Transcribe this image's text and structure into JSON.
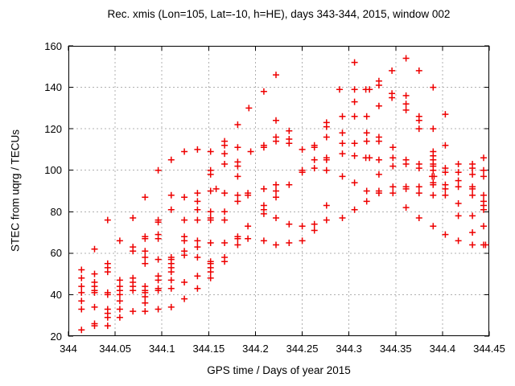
{
  "chart_data": {
    "type": "scatter",
    "title": "Rec. xmis (Lon=105, Lat=-10, h=HE), days 343-344, 2015, window 002",
    "xlabel": "GPS time / Days of year 2015",
    "ylabel": "STEC from uqrg / TECUs",
    "xlim": [
      344,
      344.45
    ],
    "ylim": [
      20,
      160
    ],
    "grid": true,
    "legend": "none",
    "marker": "plus",
    "marker_color": "#ee0000",
    "grid_color": "#b0b0b0",
    "axis_color": "#000000",
    "x_tick_labels": [
      "344",
      "344.05",
      "344.1",
      "344.15",
      "344.2",
      "344.25",
      "344.3",
      "344.35",
      "344.4",
      "344.45"
    ],
    "y_tick_labels": [
      "20",
      "40",
      "60",
      "80",
      "100",
      "120",
      "140",
      "160"
    ],
    "points": [
      [
        344.014,
        52
      ],
      [
        344.014,
        48
      ],
      [
        344.014,
        44
      ],
      [
        344.014,
        41
      ],
      [
        344.014,
        37
      ],
      [
        344.014,
        33
      ],
      [
        344.014,
        23
      ],
      [
        344.028,
        62
      ],
      [
        344.028,
        50
      ],
      [
        344.028,
        46
      ],
      [
        344.028,
        44
      ],
      [
        344.028,
        42
      ],
      [
        344.028,
        41
      ],
      [
        344.028,
        34
      ],
      [
        344.028,
        26
      ],
      [
        344.028,
        25
      ],
      [
        344.042,
        76
      ],
      [
        344.042,
        55
      ],
      [
        344.042,
        53
      ],
      [
        344.042,
        51
      ],
      [
        344.042,
        41
      ],
      [
        344.042,
        40
      ],
      [
        344.042,
        33
      ],
      [
        344.042,
        31
      ],
      [
        344.042,
        29
      ],
      [
        344.042,
        25
      ],
      [
        344.055,
        66
      ],
      [
        344.055,
        47
      ],
      [
        344.055,
        44
      ],
      [
        344.055,
        42
      ],
      [
        344.055,
        40
      ],
      [
        344.055,
        37
      ],
      [
        344.055,
        33
      ],
      [
        344.055,
        29
      ],
      [
        344.069,
        77
      ],
      [
        344.069,
        63
      ],
      [
        344.069,
        61
      ],
      [
        344.069,
        48
      ],
      [
        344.069,
        46
      ],
      [
        344.069,
        44
      ],
      [
        344.069,
        42
      ],
      [
        344.069,
        32
      ],
      [
        344.082,
        87
      ],
      [
        344.082,
        68
      ],
      [
        344.082,
        67
      ],
      [
        344.082,
        61
      ],
      [
        344.082,
        58
      ],
      [
        344.082,
        55
      ],
      [
        344.082,
        44
      ],
      [
        344.082,
        42
      ],
      [
        344.082,
        41
      ],
      [
        344.082,
        39
      ],
      [
        344.082,
        36
      ],
      [
        344.082,
        32
      ],
      [
        344.096,
        100
      ],
      [
        344.096,
        76
      ],
      [
        344.096,
        75
      ],
      [
        344.096,
        69
      ],
      [
        344.096,
        67
      ],
      [
        344.096,
        57
      ],
      [
        344.096,
        49
      ],
      [
        344.096,
        47
      ],
      [
        344.096,
        43
      ],
      [
        344.096,
        42
      ],
      [
        344.096,
        33
      ],
      [
        344.11,
        105
      ],
      [
        344.11,
        88
      ],
      [
        344.11,
        81
      ],
      [
        344.11,
        58
      ],
      [
        344.11,
        57
      ],
      [
        344.11,
        55
      ],
      [
        344.11,
        53
      ],
      [
        344.11,
        51
      ],
      [
        344.11,
        47
      ],
      [
        344.11,
        43
      ],
      [
        344.11,
        34
      ],
      [
        344.124,
        109
      ],
      [
        344.124,
        87
      ],
      [
        344.124,
        76
      ],
      [
        344.124,
        68
      ],
      [
        344.124,
        66
      ],
      [
        344.124,
        61
      ],
      [
        344.124,
        59
      ],
      [
        344.124,
        46
      ],
      [
        344.124,
        38
      ],
      [
        344.138,
        110
      ],
      [
        344.138,
        89
      ],
      [
        344.138,
        85
      ],
      [
        344.138,
        81
      ],
      [
        344.138,
        76
      ],
      [
        344.138,
        66
      ],
      [
        344.138,
        63
      ],
      [
        344.138,
        58
      ],
      [
        344.138,
        49
      ],
      [
        344.138,
        43
      ],
      [
        344.152,
        109
      ],
      [
        344.152,
        100
      ],
      [
        344.152,
        98
      ],
      [
        344.152,
        90
      ],
      [
        344.152,
        80
      ],
      [
        344.152,
        77
      ],
      [
        344.152,
        76
      ],
      [
        344.152,
        65
      ],
      [
        344.152,
        56
      ],
      [
        344.152,
        55
      ],
      [
        344.152,
        53
      ],
      [
        344.152,
        51
      ],
      [
        344.152,
        48
      ],
      [
        344.158,
        91
      ],
      [
        344.167,
        114
      ],
      [
        344.167,
        112
      ],
      [
        344.167,
        108
      ],
      [
        344.167,
        103
      ],
      [
        344.167,
        89
      ],
      [
        344.167,
        80
      ],
      [
        344.167,
        76
      ],
      [
        344.167,
        65
      ],
      [
        344.167,
        58
      ],
      [
        344.167,
        56
      ],
      [
        344.181,
        122
      ],
      [
        344.181,
        111
      ],
      [
        344.181,
        104
      ],
      [
        344.181,
        102
      ],
      [
        344.181,
        97
      ],
      [
        344.181,
        88
      ],
      [
        344.181,
        85
      ],
      [
        344.181,
        68
      ],
      [
        344.181,
        67
      ],
      [
        344.181,
        64
      ],
      [
        344.192,
        89
      ],
      [
        344.192,
        88
      ],
      [
        344.192,
        73
      ],
      [
        344.192,
        67
      ],
      [
        344.193,
        130
      ],
      [
        344.195,
        109
      ],
      [
        344.209,
        138
      ],
      [
        344.209,
        112
      ],
      [
        344.209,
        111
      ],
      [
        344.209,
        91
      ],
      [
        344.209,
        83
      ],
      [
        344.209,
        81
      ],
      [
        344.209,
        79
      ],
      [
        344.209,
        66
      ],
      [
        344.222,
        146
      ],
      [
        344.222,
        124
      ],
      [
        344.222,
        116
      ],
      [
        344.222,
        114
      ],
      [
        344.222,
        93
      ],
      [
        344.222,
        90
      ],
      [
        344.222,
        87
      ],
      [
        344.222,
        77
      ],
      [
        344.222,
        64
      ],
      [
        344.236,
        119
      ],
      [
        344.236,
        115
      ],
      [
        344.236,
        113
      ],
      [
        344.236,
        93
      ],
      [
        344.236,
        74
      ],
      [
        344.236,
        65
      ],
      [
        344.25,
        110
      ],
      [
        344.25,
        100
      ],
      [
        344.25,
        99
      ],
      [
        344.25,
        73
      ],
      [
        344.25,
        66
      ],
      [
        344.263,
        112
      ],
      [
        344.263,
        111
      ],
      [
        344.263,
        105
      ],
      [
        344.263,
        101
      ],
      [
        344.263,
        74
      ],
      [
        344.263,
        71
      ],
      [
        344.276,
        123
      ],
      [
        344.276,
        121
      ],
      [
        344.276,
        116
      ],
      [
        344.276,
        106
      ],
      [
        344.276,
        105
      ],
      [
        344.276,
        100
      ],
      [
        344.276,
        83
      ],
      [
        344.276,
        76
      ],
      [
        344.29,
        139
      ],
      [
        344.293,
        126
      ],
      [
        344.293,
        118
      ],
      [
        344.293,
        113
      ],
      [
        344.293,
        108
      ],
      [
        344.293,
        97
      ],
      [
        344.293,
        77
      ],
      [
        344.306,
        152
      ],
      [
        344.306,
        139
      ],
      [
        344.306,
        133
      ],
      [
        344.306,
        126
      ],
      [
        344.306,
        113
      ],
      [
        344.306,
        107
      ],
      [
        344.306,
        94
      ],
      [
        344.306,
        81
      ],
      [
        344.318,
        139
      ],
      [
        344.322,
        139
      ],
      [
        344.319,
        126
      ],
      [
        344.319,
        118
      ],
      [
        344.319,
        114
      ],
      [
        344.318,
        106
      ],
      [
        344.322,
        106
      ],
      [
        344.319,
        90
      ],
      [
        344.319,
        85
      ],
      [
        344.332,
        143
      ],
      [
        344.332,
        141
      ],
      [
        344.332,
        131
      ],
      [
        344.332,
        116
      ],
      [
        344.332,
        114
      ],
      [
        344.332,
        105
      ],
      [
        344.332,
        98
      ],
      [
        344.332,
        90
      ],
      [
        344.332,
        89
      ],
      [
        344.346,
        148
      ],
      [
        344.346,
        137
      ],
      [
        344.346,
        135
      ],
      [
        344.347,
        111
      ],
      [
        344.347,
        106
      ],
      [
        344.347,
        102
      ],
      [
        344.347,
        92
      ],
      [
        344.347,
        89
      ],
      [
        344.361,
        154
      ],
      [
        344.361,
        136
      ],
      [
        344.361,
        132
      ],
      [
        344.361,
        129
      ],
      [
        344.361,
        105
      ],
      [
        344.361,
        103
      ],
      [
        344.361,
        92
      ],
      [
        344.361,
        91
      ],
      [
        344.361,
        82
      ],
      [
        344.375,
        148
      ],
      [
        344.375,
        126
      ],
      [
        344.375,
        124
      ],
      [
        344.375,
        120
      ],
      [
        344.375,
        103
      ],
      [
        344.375,
        101
      ],
      [
        344.375,
        92
      ],
      [
        344.375,
        89
      ],
      [
        344.375,
        77
      ],
      [
        344.39,
        140
      ],
      [
        344.39,
        120
      ],
      [
        344.39,
        109
      ],
      [
        344.39,
        107
      ],
      [
        344.39,
        105
      ],
      [
        344.39,
        103
      ],
      [
        344.39,
        102
      ],
      [
        344.39,
        100
      ],
      [
        344.389,
        97
      ],
      [
        344.391,
        97
      ],
      [
        344.39,
        94
      ],
      [
        344.39,
        93
      ],
      [
        344.39,
        88
      ],
      [
        344.39,
        73
      ],
      [
        344.403,
        127
      ],
      [
        344.403,
        112
      ],
      [
        344.403,
        101
      ],
      [
        344.403,
        99
      ],
      [
        344.403,
        93
      ],
      [
        344.403,
        91
      ],
      [
        344.403,
        88
      ],
      [
        344.403,
        69
      ],
      [
        344.417,
        103
      ],
      [
        344.417,
        99
      ],
      [
        344.417,
        95
      ],
      [
        344.417,
        92
      ],
      [
        344.417,
        84
      ],
      [
        344.417,
        78
      ],
      [
        344.417,
        66
      ],
      [
        344.432,
        103
      ],
      [
        344.432,
        101
      ],
      [
        344.432,
        98
      ],
      [
        344.432,
        92
      ],
      [
        344.432,
        91
      ],
      [
        344.432,
        88
      ],
      [
        344.432,
        78
      ],
      [
        344.432,
        70
      ],
      [
        344.432,
        64
      ],
      [
        344.444,
        106
      ],
      [
        344.444,
        100
      ],
      [
        344.444,
        97
      ],
      [
        344.444,
        88
      ],
      [
        344.444,
        85
      ],
      [
        344.444,
        83
      ],
      [
        344.444,
        81
      ],
      [
        344.444,
        73
      ],
      [
        344.444,
        64
      ],
      [
        344.446,
        64
      ]
    ]
  }
}
